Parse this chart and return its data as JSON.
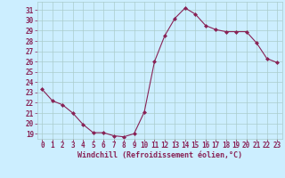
{
  "x": [
    0,
    1,
    2,
    3,
    4,
    5,
    6,
    7,
    8,
    9,
    10,
    11,
    12,
    13,
    14,
    15,
    16,
    17,
    18,
    19,
    20,
    21,
    22,
    23
  ],
  "y": [
    23.3,
    22.2,
    21.8,
    21.0,
    19.9,
    19.1,
    19.1,
    18.8,
    18.7,
    19.0,
    21.1,
    26.0,
    28.5,
    30.2,
    31.2,
    30.6,
    29.5,
    29.1,
    28.9,
    28.9,
    28.9,
    27.8,
    26.3,
    25.9
  ],
  "line_color": "#882255",
  "marker": "D",
  "marker_size": 2.0,
  "bg_color": "#cceeff",
  "grid_color": "#aacccc",
  "yticks": [
    19,
    20,
    21,
    22,
    23,
    24,
    25,
    26,
    27,
    28,
    29,
    30,
    31
  ],
  "xlabel": "Windchill (Refroidissement éolien,°C)",
  "xlim": [
    -0.5,
    23.5
  ],
  "ylim": [
    18.5,
    31.8
  ],
  "tick_fontsize": 5.5,
  "xlabel_fontsize": 6.0
}
